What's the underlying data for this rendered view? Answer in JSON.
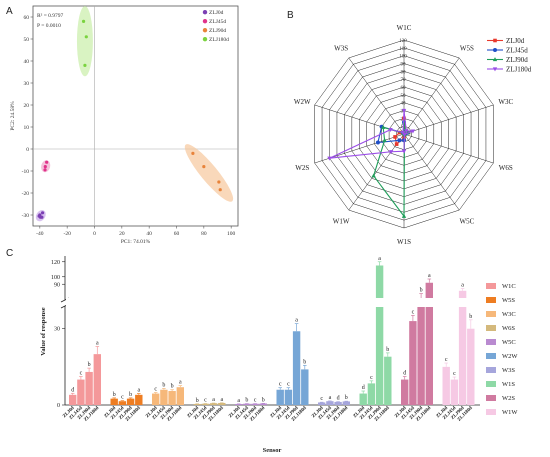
{
  "chart_data": [
    {
      "panel": "A",
      "type": "scatter",
      "xlabel": "PC1: 74.01%",
      "ylabel": "PC2: 24.58%",
      "xlim": [
        -45,
        105
      ],
      "ylim": [
        -35,
        65
      ],
      "xticks": [
        -40,
        -20,
        0,
        20,
        40,
        60,
        80,
        100
      ],
      "yticks": [
        -30,
        -20,
        -10,
        0,
        10,
        20,
        30,
        40,
        50,
        60
      ],
      "annotations": [
        "R² = 0.9797",
        "P = 0.0010"
      ],
      "legend_position": "top-right",
      "series": [
        {
          "name": "ZLJ0d",
          "color": "#7b3fb3",
          "ellipse_color": "#c8a8e8",
          "points": [
            [
              -40,
              -30
            ],
            [
              -38,
              -29
            ],
            [
              -39.5,
              -31
            ],
            [
              -38.5,
              -31
            ],
            [
              -40.5,
              -30.5
            ]
          ]
        },
        {
          "name": "ZLJ45d",
          "color": "#e0338a",
          "ellipse_color": "#f0a8cc",
          "points": [
            [
              -35,
              -6
            ],
            [
              -36,
              -8
            ],
            [
              -36.2,
              -9.5
            ]
          ]
        },
        {
          "name": "ZLJ90d",
          "color": "#e8833a",
          "ellipse_color": "#f6c79c",
          "points": [
            [
              72,
              -2
            ],
            [
              80,
              -8
            ],
            [
              91,
              -15
            ],
            [
              92,
              -18.5
            ]
          ]
        },
        {
          "name": "ZLJ180d",
          "color": "#7ad33f",
          "ellipse_color": "#c9eea8",
          "points": [
            [
              -8,
              58
            ],
            [
              -6,
              51
            ],
            [
              -7,
              38
            ]
          ]
        }
      ]
    },
    {
      "panel": "B",
      "type": "radar",
      "axes": [
        "W1C",
        "W5S",
        "W3C",
        "W6S",
        "W5C",
        "W1S",
        "W1W",
        "W2S",
        "W2W",
        "W3S"
      ],
      "rticks": [
        0,
        10,
        20,
        30,
        40,
        50,
        60,
        70,
        80,
        90,
        100,
        110,
        120
      ],
      "rmax": 120,
      "legend_position": "top-right",
      "series": [
        {
          "name": "ZLJ0d",
          "color": "#e8392d",
          "marker": "square",
          "values": [
            20,
            4,
            6,
            1,
            1,
            5,
            16,
            12,
            6,
            1
          ]
        },
        {
          "name": "ZLJ45d",
          "color": "#1f4fc8",
          "marker": "circle",
          "values": [
            15,
            2,
            5,
            1,
            1,
            8,
            10,
            35,
            30,
            2
          ]
        },
        {
          "name": "ZLJ90d",
          "color": "#1f9e5a",
          "marker": "triangle",
          "values": [
            14,
            3,
            6,
            1,
            1,
            105,
            66,
            26,
            28,
            1
          ]
        },
        {
          "name": "ZLJ180d",
          "color": "#9b4ee8",
          "marker": "triangle-down",
          "values": [
            30,
            5,
            12,
            1,
            1,
            22,
            28,
            100,
            18,
            2
          ]
        }
      ]
    },
    {
      "panel": "C",
      "type": "bar",
      "xlabel": "Sensor",
      "ylabel": "Value of response",
      "yticks_lower": [
        0,
        30
      ],
      "yticks_upper": [
        90,
        100,
        120
      ],
      "axis_break": [
        35,
        85
      ],
      "sample_labels": [
        "ZLJ0d",
        "ZLJ45d",
        "ZLJ90d",
        "ZLJ180d"
      ],
      "legend_position": "right",
      "sensors": [
        {
          "name": "W1C",
          "color": "#f4989a",
          "values": [
            4,
            10,
            13,
            20
          ],
          "errors": [
            0.6,
            1.2,
            1.5,
            3
          ],
          "letters": [
            "d",
            "c",
            "b",
            "a"
          ]
        },
        {
          "name": "W5S",
          "color": "#ee7d22",
          "values": [
            2.5,
            1.5,
            2.5,
            4
          ],
          "errors": [
            0.3,
            0.2,
            0.3,
            0.5
          ],
          "letters": [
            "b",
            "c",
            "b",
            "a"
          ]
        },
        {
          "name": "W3C",
          "color": "#f6b87a",
          "values": [
            4.5,
            6,
            5.5,
            7
          ],
          "errors": [
            0.4,
            0.5,
            0.5,
            0.6
          ],
          "letters": [
            "c",
            "b",
            "b",
            "a"
          ]
        },
        {
          "name": "W6S",
          "color": "#d4b97c",
          "values": [
            0.4,
            0.5,
            0.7,
            0.8
          ],
          "errors": [
            0.05,
            0.05,
            0.05,
            0.05
          ],
          "letters": [
            "b",
            "c",
            "a",
            "a"
          ]
        },
        {
          "name": "W5C",
          "color": "#b98ad0",
          "values": [
            0.4,
            0.5,
            0.5,
            0.6
          ],
          "errors": [
            0.05,
            0.05,
            0.05,
            0.05
          ],
          "letters": [
            "a",
            "b",
            "c",
            "b"
          ]
        },
        {
          "name": "W2W",
          "color": "#76a6d6",
          "values": [
            6,
            6,
            29,
            14
          ],
          "errors": [
            0.8,
            0.8,
            3,
            1.6
          ],
          "letters": [
            "c",
            "c",
            "a",
            "b"
          ]
        },
        {
          "name": "W3S",
          "color": "#a6a6dc",
          "values": [
            1,
            1.5,
            1.2,
            1.4
          ],
          "errors": [
            0.1,
            0.1,
            0.1,
            0.1
          ],
          "letters": [
            "c",
            "a",
            "d",
            "b"
          ]
        },
        {
          "name": "W1S",
          "color": "#8ed9a6",
          "values": [
            4.5,
            8.5,
            115,
            19
          ],
          "errors": [
            1,
            1,
            5,
            1.5
          ],
          "letters": [
            "d",
            "c",
            "a",
            "b"
          ]
        },
        {
          "name": "W2S",
          "color": "#d07aa0",
          "values": [
            10,
            33,
            65,
            92
          ],
          "errors": [
            1.2,
            3,
            10,
            5
          ],
          "letters": [
            "d",
            "c",
            "b",
            "a"
          ]
        },
        {
          "name": "W1W",
          "color": "#f6c9e4",
          "values": [
            15,
            10,
            80,
            30
          ],
          "errors": [
            1.5,
            1,
            4,
            3.5
          ],
          "letters": [
            "c",
            "c",
            "a",
            "b"
          ]
        }
      ]
    }
  ],
  "panel_labels": [
    "A",
    "B",
    "C"
  ]
}
